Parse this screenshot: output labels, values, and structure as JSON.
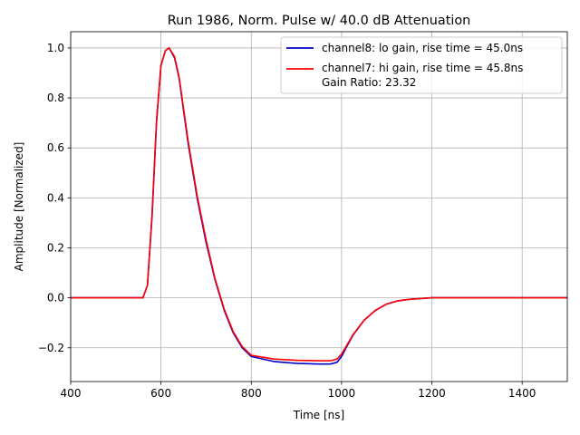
{
  "chart_data": {
    "type": "line",
    "title": "Run 1986, Norm. Pulse w/ 40.0 dB Attenuation",
    "xlabel": "Time [ns]",
    "ylabel": "Amplitude [Normalized]",
    "xlim": [
      400,
      1500
    ],
    "ylim": [
      -0.335,
      1.065
    ],
    "xticks": [
      400,
      600,
      800,
      1000,
      1200,
      1400
    ],
    "xtick_labels": [
      "400",
      "600",
      "800",
      "1000",
      "1200",
      "1400"
    ],
    "yticks": [
      -0.2,
      0.0,
      0.2,
      0.4,
      0.6,
      0.8,
      1.0
    ],
    "ytick_labels": [
      "−0.2",
      "0.0",
      "0.2",
      "0.4",
      "0.6",
      "0.8",
      "1.0"
    ],
    "grid": true,
    "legend_position": "top-right",
    "legend_extra_text": "Gain Ratio: 23.32",
    "x": [
      400,
      500,
      560,
      570,
      580,
      590,
      600,
      610,
      618,
      630,
      640,
      660,
      680,
      700,
      720,
      740,
      760,
      780,
      800,
      850,
      900,
      950,
      975,
      990,
      1000,
      1010,
      1025,
      1050,
      1075,
      1100,
      1125,
      1150,
      1200,
      1300,
      1400,
      1500
    ],
    "series": [
      {
        "name": "channel8: lo gain, rise time = 45.0ns",
        "color": "#0000cc",
        "values": [
          0.0,
          0.0,
          0.0,
          0.05,
          0.32,
          0.7,
          0.93,
          0.99,
          1.0,
          0.96,
          0.88,
          0.62,
          0.4,
          0.22,
          0.07,
          -0.05,
          -0.14,
          -0.2,
          -0.235,
          -0.255,
          -0.262,
          -0.265,
          -0.265,
          -0.258,
          -0.235,
          -0.2,
          -0.15,
          -0.09,
          -0.05,
          -0.025,
          -0.012,
          -0.006,
          0.0,
          0.0,
          0.0,
          0.0
        ]
      },
      {
        "name": "channel7: hi gain, rise time = 45.8ns",
        "color": "#ff0000",
        "values": [
          0.0,
          0.0,
          0.0,
          0.05,
          0.33,
          0.71,
          0.93,
          0.99,
          1.0,
          0.965,
          0.885,
          0.63,
          0.41,
          0.23,
          0.075,
          -0.045,
          -0.135,
          -0.195,
          -0.23,
          -0.245,
          -0.25,
          -0.252,
          -0.252,
          -0.245,
          -0.225,
          -0.195,
          -0.148,
          -0.09,
          -0.05,
          -0.025,
          -0.012,
          -0.006,
          0.0,
          0.0,
          0.0,
          0.0
        ]
      }
    ]
  }
}
